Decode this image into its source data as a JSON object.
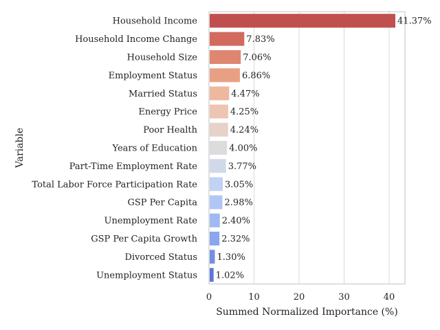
{
  "chart_data": {
    "type": "bar",
    "orientation": "horizontal",
    "title": "",
    "xlabel": "Summed Normalized Importance (%)",
    "ylabel": "Variable",
    "xlim": [
      0,
      43.5
    ],
    "xticks": [
      0,
      10,
      20,
      30,
      40
    ],
    "grid": true,
    "legend": "none",
    "categories": [
      "Household Income",
      "Household Income Change",
      "Household Size",
      "Employment Status",
      "Married Status",
      "Energy Price",
      "Poor Health",
      "Years of Education",
      "Part-Time Employment Rate",
      "Total Labor Force Participation Rate",
      "GSP Per Capita",
      "Unemployment Rate",
      "GSP Per Capita Growth",
      "Divorced Status",
      "Unemployment Status"
    ],
    "values": [
      41.37,
      7.83,
      7.06,
      6.86,
      4.47,
      4.25,
      4.24,
      4.0,
      3.77,
      3.05,
      2.98,
      2.4,
      2.32,
      1.3,
      1.02
    ],
    "value_labels": [
      "41.37%",
      "7.83%",
      "7.06%",
      "6.86%",
      "4.47%",
      "4.25%",
      "4.24%",
      "4.00%",
      "3.77%",
      "3.05%",
      "2.98%",
      "2.40%",
      "2.32%",
      "1.30%",
      "1.02%"
    ],
    "colors": [
      "#c0504d",
      "#d26a5e",
      "#df8670",
      "#e8a084",
      "#eeb89e",
      "#eec4b2",
      "#e6d2c7",
      "#dcdcdc",
      "#cfd9ea",
      "#c2d2f3",
      "#b0c7f5",
      "#9fb9f3",
      "#8aa6ee",
      "#748fe3",
      "#5e76d6"
    ]
  }
}
